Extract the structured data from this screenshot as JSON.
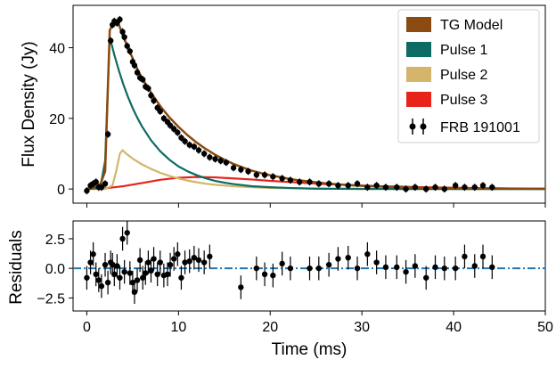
{
  "chart_data": [
    {
      "type": "line",
      "panel": "top",
      "xlabel": "",
      "ylabel": "Flux Density (Jy)",
      "xlim": [
        -1.5,
        50
      ],
      "ylim": [
        -4,
        52
      ],
      "yticks": [
        0,
        20,
        40
      ],
      "xticks": [
        0,
        10,
        20,
        30,
        40,
        50
      ],
      "xtick_labels_shown": false,
      "legend_position": "top-right",
      "colors": {
        "model": "#8b4a0f",
        "pulse1": "#0d6b63",
        "pulse2": "#d4b56a",
        "pulse3": "#e8231a",
        "data": "#000000"
      },
      "series": [
        {
          "name": "TG Model",
          "x": [
            0,
            1,
            1.5,
            2,
            2.5,
            3,
            3.5,
            4,
            4.5,
            5,
            5.5,
            6,
            7,
            8,
            9,
            10,
            11,
            12,
            13,
            14,
            15,
            16,
            17,
            18,
            19,
            20,
            21,
            22,
            23,
            24,
            26,
            28,
            30,
            32,
            34,
            36,
            38,
            40,
            42,
            44,
            46,
            48,
            50
          ],
          "values": [
            0.0,
            0.6,
            1.5,
            5.0,
            45.0,
            47.2,
            46.5,
            43.0,
            40.0,
            37.0,
            34.0,
            31.5,
            27.3,
            23.5,
            20.3,
            17.6,
            15.2,
            13.1,
            11.3,
            9.7,
            8.3,
            7.1,
            6.1,
            5.2,
            4.5,
            3.9,
            3.4,
            2.9,
            2.5,
            2.2,
            1.6,
            1.2,
            0.9,
            0.7,
            0.5,
            0.4,
            0.3,
            0.25,
            0.2,
            0.15,
            0.1,
            0.08,
            0.06
          ]
        },
        {
          "name": "Pulse 1",
          "x": [
            0,
            1,
            1.5,
            2,
            2.5,
            3,
            3.5,
            4,
            4.5,
            5,
            5.5,
            6,
            7,
            8,
            9,
            10,
            11,
            12,
            13,
            14,
            15,
            16,
            18,
            20,
            22,
            25,
            30,
            40,
            50
          ],
          "values": [
            0.0,
            0.2,
            0.8,
            8.0,
            43.0,
            38.0,
            33.5,
            29.5,
            26.0,
            22.9,
            20.2,
            17.8,
            13.8,
            10.7,
            8.3,
            6.4,
            5.0,
            3.9,
            3.0,
            2.3,
            1.8,
            1.4,
            0.8,
            0.5,
            0.3,
            0.1,
            0.02,
            0.0,
            0.0
          ]
        },
        {
          "name": "Pulse 2",
          "x": [
            0,
            2,
            2.8,
            3.2,
            3.6,
            3.9,
            4.3,
            5,
            6,
            7,
            8,
            9,
            10,
            11,
            12,
            13,
            14,
            16,
            18,
            20,
            25,
            30,
            40,
            50
          ],
          "values": [
            0.0,
            0.0,
            1.0,
            5.0,
            10.0,
            11.0,
            10.0,
            8.6,
            7.0,
            5.7,
            4.6,
            3.7,
            3.0,
            2.4,
            1.9,
            1.5,
            1.2,
            0.8,
            0.5,
            0.3,
            0.1,
            0.03,
            0.0,
            0.0
          ]
        },
        {
          "name": "Pulse 3",
          "x": [
            0,
            2,
            4,
            6,
            8,
            10,
            12,
            14,
            16,
            18,
            20,
            22,
            24,
            26,
            28,
            30,
            32,
            34,
            36,
            38,
            40,
            42,
            44,
            46,
            48,
            50
          ],
          "values": [
            0.0,
            0.2,
            0.8,
            1.7,
            2.6,
            3.2,
            3.4,
            3.3,
            3.0,
            2.7,
            2.3,
            2.0,
            1.7,
            1.4,
            1.2,
            1.0,
            0.8,
            0.7,
            0.55,
            0.45,
            0.35,
            0.28,
            0.22,
            0.17,
            0.13,
            0.1
          ]
        },
        {
          "name": "FRB 191001",
          "kind": "errorbar",
          "x": [
            0.0,
            0.4,
            0.7,
            1.0,
            1.3,
            1.6,
            2.0,
            2.3,
            2.6,
            2.8,
            3.0,
            3.3,
            3.6,
            3.9,
            4.1,
            4.4,
            4.7,
            5.0,
            5.2,
            5.5,
            5.8,
            6.1,
            6.4,
            6.7,
            7.0,
            7.3,
            7.7,
            8.0,
            8.4,
            8.8,
            9.1,
            9.5,
            9.9,
            10.3,
            10.7,
            11.2,
            11.7,
            12.2,
            12.8,
            13.4,
            14.0,
            14.6,
            15.2,
            16.0,
            16.8,
            17.6,
            18.5,
            19.4,
            20.3,
            21.3,
            22.2,
            23.2,
            24.3,
            25.3,
            26.4,
            27.4,
            28.5,
            29.5,
            30.6,
            31.6,
            32.6,
            33.8,
            34.8,
            35.8,
            37.0,
            38.0,
            39.0,
            40.2,
            41.2,
            42.3,
            43.2,
            44.2
          ],
          "values": [
            -0.5,
            1.0,
            1.5,
            2.0,
            0.5,
            0.5,
            1.5,
            15.5,
            42.0,
            46.5,
            47.5,
            47.0,
            48.0,
            44.5,
            43.0,
            40.5,
            39.0,
            36.0,
            35.0,
            33.0,
            31.5,
            31.0,
            29.0,
            28.5,
            26.5,
            25.0,
            23.0,
            22.0,
            20.0,
            19.0,
            18.0,
            17.0,
            16.0,
            14.5,
            13.5,
            12.5,
            12.0,
            11.0,
            10.0,
            9.0,
            8.5,
            8.0,
            7.5,
            6.0,
            5.5,
            5.0,
            4.0,
            4.0,
            3.5,
            3.0,
            2.5,
            2.0,
            2.0,
            1.5,
            1.5,
            1.0,
            1.0,
            1.5,
            0.5,
            1.0,
            0.5,
            0.5,
            0.0,
            0.5,
            0.0,
            0.5,
            0.0,
            1.0,
            0.5,
            0.5,
            1.0,
            0.5
          ],
          "errors": [
            1.0,
            1.0,
            1.0,
            1.0,
            1.0,
            1.0,
            1.0,
            1.0,
            1.0,
            1.0,
            1.0,
            1.0,
            1.0,
            1.0,
            1.0,
            1.0,
            1.0,
            1.0,
            1.0,
            1.0,
            1.0,
            1.0,
            1.0,
            1.0,
            1.0,
            1.0,
            1.0,
            1.0,
            1.0,
            1.0,
            1.0,
            1.0,
            1.0,
            1.0,
            1.0,
            1.0,
            1.0,
            1.0,
            1.0,
            1.0,
            1.0,
            1.0,
            1.0,
            1.0,
            1.0,
            1.0,
            1.0,
            1.0,
            1.0,
            1.0,
            1.0,
            1.0,
            1.0,
            1.0,
            1.0,
            1.0,
            1.0,
            1.0,
            1.0,
            1.0,
            1.0,
            1.0,
            1.0,
            1.0,
            1.0,
            1.0,
            1.0,
            1.0,
            1.0,
            1.0,
            1.0,
            1.0
          ]
        }
      ]
    },
    {
      "type": "scatter",
      "panel": "bottom",
      "xlabel": "Time (ms)",
      "ylabel": "Residuals",
      "xlim": [
        -1.5,
        50
      ],
      "ylim": [
        -3.6,
        4.0
      ],
      "yticks": [
        -2.5,
        0.0,
        2.5
      ],
      "ytick_labels": [
        "−2.5",
        "0.0",
        "2.5"
      ],
      "xticks": [
        0,
        10,
        20,
        30,
        40,
        50
      ],
      "xtick_labels": [
        "0",
        "10",
        "20",
        "30",
        "40",
        "50"
      ],
      "zero_line_color": "#1f77b4",
      "series": [
        {
          "name": "residuals",
          "x": [
            0.0,
            0.4,
            0.7,
            1.0,
            1.3,
            1.6,
            2.0,
            2.3,
            2.6,
            2.8,
            3.0,
            3.3,
            3.6,
            3.9,
            4.1,
            4.4,
            4.7,
            5.0,
            5.2,
            5.5,
            5.8,
            6.1,
            6.4,
            6.7,
            7.0,
            7.3,
            7.7,
            8.0,
            8.4,
            8.8,
            9.1,
            9.5,
            9.9,
            10.3,
            10.7,
            11.2,
            11.7,
            12.2,
            12.8,
            13.4,
            16.8,
            18.5,
            19.4,
            20.3,
            21.3,
            22.2,
            24.3,
            25.3,
            26.4,
            27.4,
            28.5,
            29.5,
            30.6,
            31.6,
            32.6,
            33.8,
            34.8,
            35.8,
            37.0,
            38.0,
            39.0,
            40.2,
            41.2,
            42.3,
            43.2,
            44.2
          ],
          "values": [
            -0.8,
            0.5,
            1.2,
            -0.5,
            -1.0,
            -1.5,
            0.3,
            -1.2,
            0.5,
            0.3,
            -0.5,
            0.2,
            -0.8,
            2.5,
            -0.3,
            3.0,
            -0.4,
            -1.2,
            -2.0,
            -1.0,
            0.7,
            -0.8,
            -0.4,
            0.5,
            -0.2,
            0.8,
            -0.5,
            0.5,
            -0.6,
            -0.5,
            0.3,
            0.8,
            1.2,
            -0.8,
            0.5,
            0.6,
            0.9,
            0.7,
            0.5,
            1.0,
            -1.6,
            0.0,
            -0.5,
            -0.6,
            0.4,
            0.0,
            0.0,
            0.0,
            0.3,
            0.8,
            0.9,
            0.0,
            1.2,
            0.5,
            0.1,
            0.1,
            -0.3,
            0.2,
            -0.8,
            0.1,
            0.0,
            0.0,
            1.0,
            0.2,
            1.0,
            0.1
          ],
          "errors": [
            1.0,
            1.0,
            1.0,
            1.0,
            1.0,
            1.0,
            1.0,
            1.0,
            1.0,
            1.0,
            1.0,
            1.0,
            1.0,
            1.0,
            1.0,
            1.0,
            1.0,
            1.0,
            1.0,
            1.0,
            1.0,
            1.0,
            1.0,
            1.0,
            1.0,
            1.0,
            1.0,
            1.0,
            1.0,
            1.0,
            1.0,
            1.0,
            1.0,
            1.0,
            1.0,
            1.0,
            1.0,
            1.0,
            1.0,
            1.0,
            1.0,
            1.0,
            1.0,
            1.0,
            1.0,
            1.0,
            1.0,
            1.0,
            1.0,
            1.0,
            1.0,
            1.0,
            1.0,
            1.0,
            1.0,
            1.0,
            1.0,
            1.0,
            1.0,
            1.0,
            1.0,
            1.0,
            1.0,
            1.0,
            1.0,
            1.0
          ]
        }
      ]
    }
  ]
}
